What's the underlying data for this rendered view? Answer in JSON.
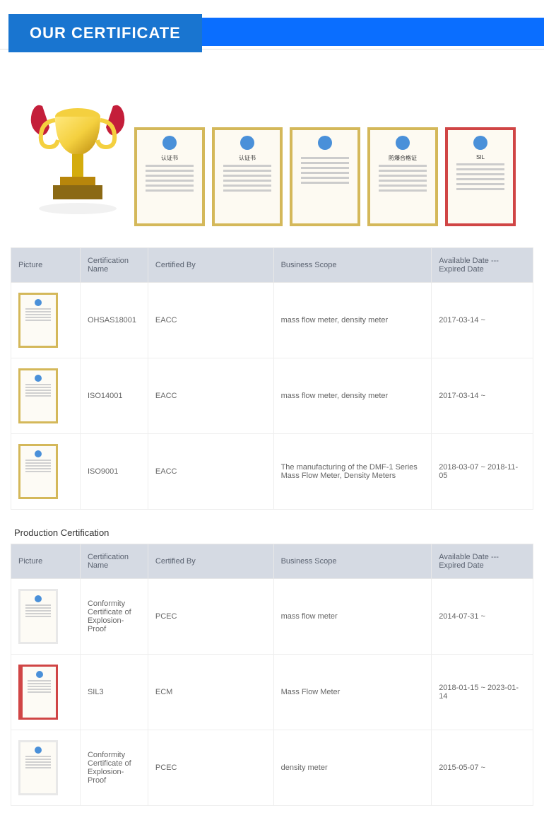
{
  "banner": {
    "title": "OUR CERTIFICATE"
  },
  "section2_title": "Production Certification",
  "table_headers": {
    "picture": "Picture",
    "name": "Certification Name",
    "by": "Certified By",
    "scope": "Business Scope",
    "date": "Available Date --- Expired Date"
  },
  "table1": {
    "rows": [
      {
        "name": "OHSAS18001",
        "by": "EACC",
        "scope": "mass flow meter, density meter",
        "date": "2017-03-14 ~",
        "border": "gold"
      },
      {
        "name": "ISO14001",
        "by": "EACC",
        "scope": "mass flow meter, density meter",
        "date": "2017-03-14 ~",
        "border": "gold"
      },
      {
        "name": "ISO9001",
        "by": "EACC",
        "scope": "The manufacturing of the DMF-1 Series Mass Flow Meter, Density Meters",
        "date": "2018-03-07 ~ 2018-11-05",
        "border": "gold"
      }
    ]
  },
  "table2": {
    "rows": [
      {
        "name": "Conformity Certificate of Explosion-Proof",
        "by": "PCEC",
        "scope": "mass flow meter",
        "date": "2014-07-31 ~",
        "border": "white"
      },
      {
        "name": "SIL3",
        "by": "ECM",
        "scope": "Mass Flow Meter",
        "date": "2018-01-15 ~ 2023-01-14",
        "border": "red"
      },
      {
        "name": "Conformity Certificate of Explosion-Proof",
        "by": "PCEC",
        "scope": "density meter",
        "date": "2015-05-07 ~",
        "border": "white"
      }
    ]
  },
  "gallery": {
    "thumbs": [
      {
        "border": "gold",
        "label": "认证书"
      },
      {
        "border": "gold",
        "label": "认证书"
      },
      {
        "border": "gold",
        "label": ""
      },
      {
        "border": "gold",
        "label": "防爆合格证"
      },
      {
        "border": "red",
        "label": "SIL"
      }
    ]
  },
  "colors": {
    "banner_bg": "#0a6eff",
    "banner_tab": "#1975d0",
    "header_bg": "#d5dae3",
    "gold_border": "#d4b85a",
    "red_border": "#d04545"
  }
}
